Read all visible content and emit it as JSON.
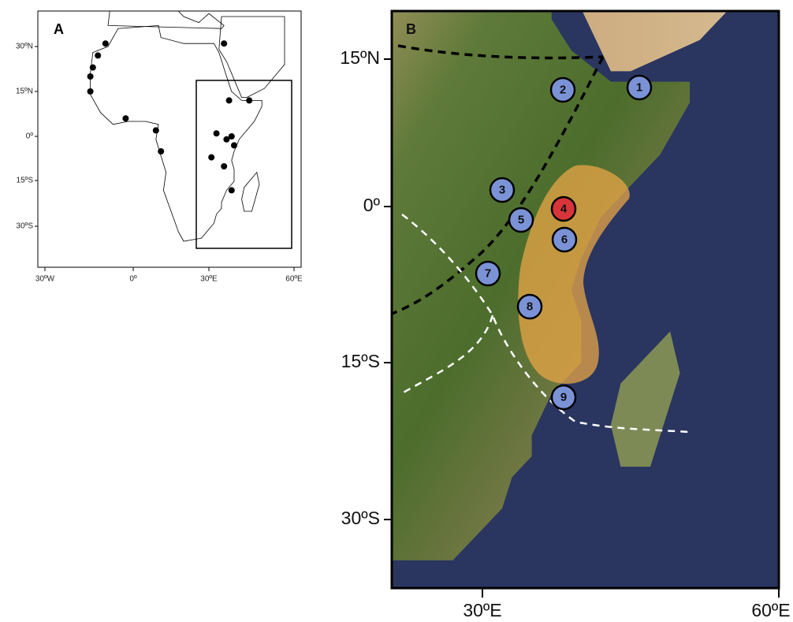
{
  "panel_a": {
    "label": "A",
    "lat_ticks": [
      "30ºN",
      "15ºN",
      "0º",
      "15ºS",
      "30ºS"
    ],
    "lon_ticks": [
      "30ºW",
      "0º",
      "30ºE",
      "60ºE"
    ]
  },
  "panel_b": {
    "label": "B",
    "lat_ticks": [
      "15ºN",
      "0º",
      "15ºS",
      "30ºS"
    ],
    "lon_ticks": [
      "30ºE",
      "60ºE"
    ],
    "sites": [
      1,
      2,
      3,
      4,
      5,
      6,
      7,
      8,
      9
    ]
  }
}
